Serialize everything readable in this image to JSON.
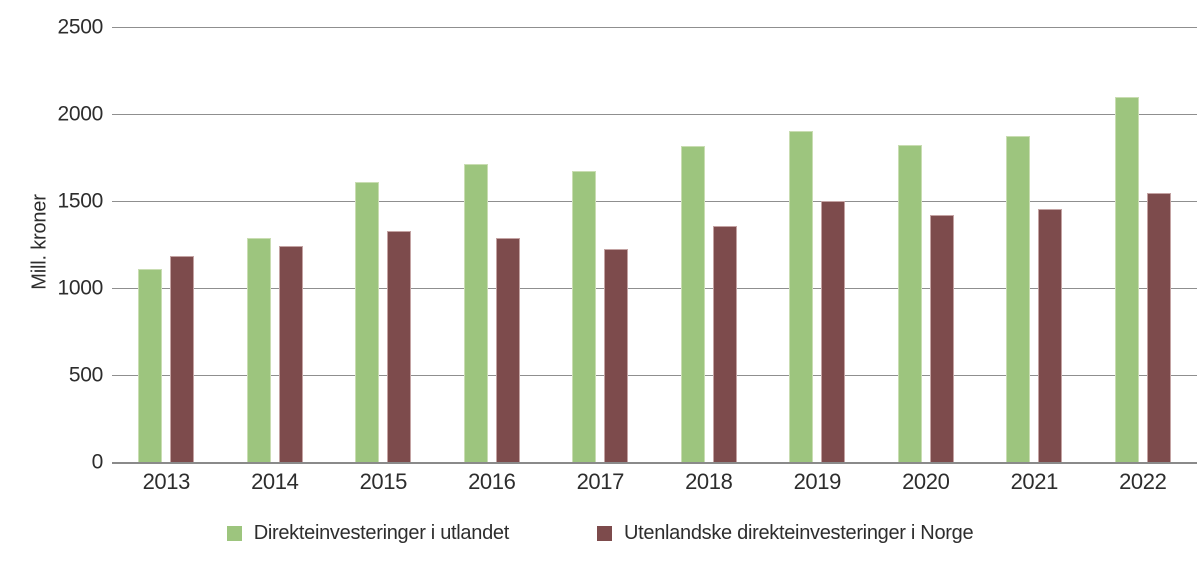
{
  "figure": {
    "background": "#ffffff",
    "text_color": "#2d2d2d",
    "grid_color": "#8f8f8f",
    "axis_color": "#8a8a8a"
  },
  "chart_data": {
    "type": "bar",
    "title": "",
    "xlabel": "",
    "ylabel": "Mill. kroner",
    "ylim": [
      0,
      2500
    ],
    "yticks": [
      0,
      500,
      1000,
      1500,
      2000,
      2500
    ],
    "grid": true,
    "legend_position": "bottom",
    "categories": [
      "2013",
      "2014",
      "2015",
      "2016",
      "2017",
      "2018",
      "2019",
      "2020",
      "2021",
      "2022"
    ],
    "series": [
      {
        "id": "utlandet",
        "name": "Direkteinvesteringer i utlandet",
        "color": "#9dc57e",
        "edge": "#c9ddb2",
        "values": [
          1110,
          1285,
          1610,
          1715,
          1670,
          1815,
          1905,
          1820,
          1875,
          2095
        ]
      },
      {
        "id": "norge",
        "name": "Utenlandske direkteinvesteringer i Norge",
        "color": "#7d4b4c",
        "edge": "#c4a3a3",
        "values": [
          1185,
          1240,
          1330,
          1285,
          1225,
          1355,
          1500,
          1420,
          1455,
          1545
        ]
      }
    ]
  }
}
